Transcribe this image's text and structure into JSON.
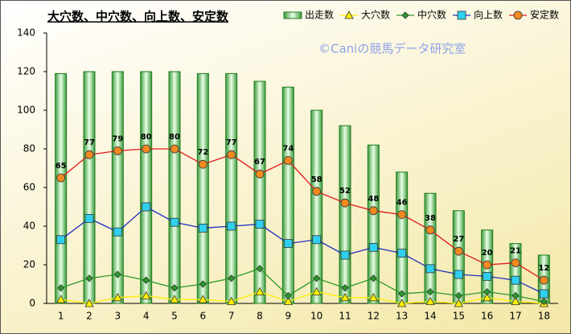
{
  "chart_data": {
    "type": "bar-line",
    "title": "大穴数、中穴数、向上数、安定数",
    "watermark": "©Caniの競馬データ研究室",
    "categories": [
      "1",
      "2",
      "3",
      "4",
      "5",
      "6",
      "7",
      "8",
      "9",
      "10",
      "11",
      "12",
      "13",
      "14",
      "15",
      "16",
      "17",
      "18"
    ],
    "ylim": [
      0,
      140
    ],
    "yticks": [
      0,
      20,
      40,
      60,
      80,
      100,
      120,
      140
    ],
    "legend": "top-right",
    "series": [
      {
        "name": "出走数",
        "kind": "bar",
        "color": "#1e7a1e",
        "values": [
          119,
          120,
          120,
          120,
          120,
          119,
          119,
          115,
          112,
          100,
          92,
          82,
          68,
          57,
          48,
          38,
          31,
          25
        ]
      },
      {
        "name": "大穴数",
        "kind": "line",
        "marker": "triangle",
        "color": "#ffee00",
        "values": [
          2,
          0,
          3,
          4,
          2,
          2,
          1,
          6,
          1,
          6,
          3,
          3,
          0,
          1,
          0,
          3,
          1,
          0
        ]
      },
      {
        "name": "中穴数",
        "kind": "line",
        "marker": "diamond",
        "color": "#2a9a2a",
        "values": [
          8,
          13,
          15,
          12,
          8,
          10,
          13,
          18,
          4,
          13,
          8,
          13,
          5,
          6,
          4,
          6,
          4,
          1
        ]
      },
      {
        "name": "向上数",
        "kind": "line",
        "marker": "square",
        "color": "#1f2fbf",
        "values": [
          33,
          44,
          37,
          50,
          42,
          39,
          40,
          41,
          31,
          33,
          25,
          29,
          26,
          18,
          15,
          14,
          12,
          5
        ]
      },
      {
        "name": "安定数",
        "kind": "line",
        "marker": "circle",
        "color": "#e01818",
        "show_labels": true,
        "values": [
          65,
          77,
          79,
          80,
          80,
          72,
          77,
          67,
          74,
          58,
          52,
          48,
          46,
          38,
          27,
          20,
          21,
          12
        ]
      }
    ]
  }
}
